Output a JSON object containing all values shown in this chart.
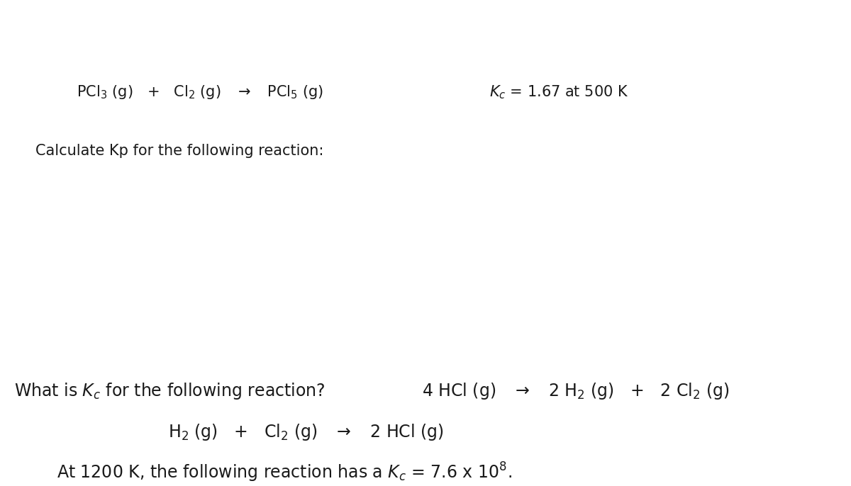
{
  "background_color": "#ffffff",
  "fig_width": 12.0,
  "fig_height": 6.86,
  "dpi": 100,
  "font_size": 17,
  "font_size_bottom": 15,
  "text_color": "#1a1a1a"
}
